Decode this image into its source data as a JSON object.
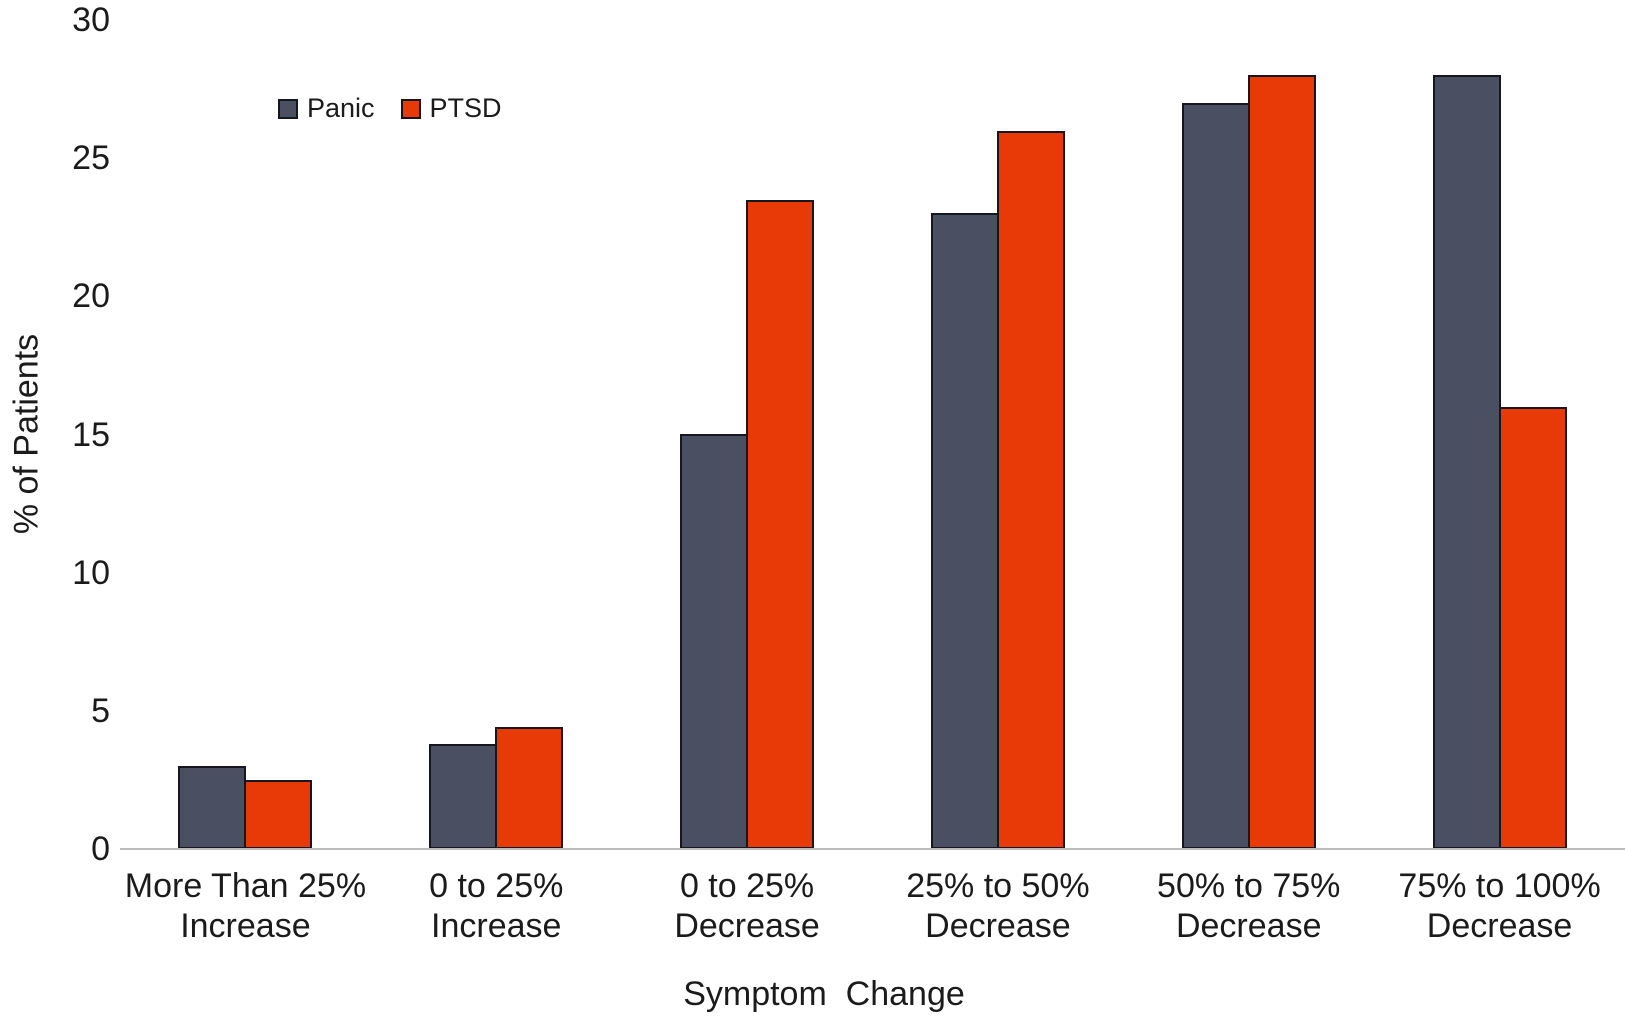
{
  "chart_data": {
    "type": "bar",
    "title": "",
    "xlabel": "Symptom  Change",
    "ylabel": "% of Patients",
    "ylim": [
      0,
      30
    ],
    "yticks": [
      0,
      5,
      10,
      15,
      20,
      25,
      30
    ],
    "grid": false,
    "legend_position": "top-left-inside",
    "categories": [
      "More Than 25% Increase",
      "0 to 25% Increase",
      "0 to 25% Decrease",
      "25% to 50% Decrease",
      "50% to 75% Decrease",
      "75% to 100% Decrease"
    ],
    "category_lines": [
      [
        "More Than 25%",
        "Increase"
      ],
      [
        "0 to 25%",
        "Increase"
      ],
      [
        "0 to 25%",
        "Decrease"
      ],
      [
        "25% to 50%",
        "Decrease"
      ],
      [
        "50% to 75%",
        "Decrease"
      ],
      [
        "75% to 100%",
        "Decrease"
      ]
    ],
    "series": [
      {
        "name": "Panic",
        "color": "#4b4f62",
        "values": [
          3,
          3.8,
          15,
          23,
          27,
          28
        ]
      },
      {
        "name": "PTSD",
        "color": "#e83a07",
        "values": [
          2.5,
          4.4,
          23.5,
          26,
          28,
          16
        ]
      }
    ],
    "colors": {
      "bar_outline": "#16161e",
      "axis_line": "#bdbdbd",
      "text": "#1b1b1b",
      "background": "#ffffff"
    }
  }
}
